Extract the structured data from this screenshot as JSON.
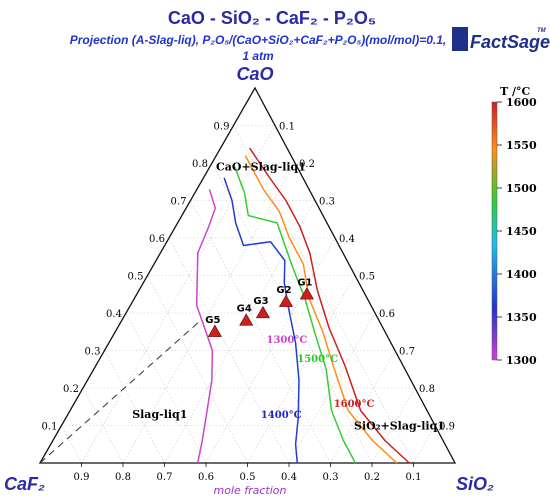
{
  "chart_data": {
    "type": "ternary",
    "title": "CaO - SiO₂ - CaF₂ - P₂O₅",
    "subtitle_line1": "Projection (A-Slag-liq), P₂O₅/(CaO+SiO₂+CaF₂+P₂O₅)(mol/mol)=0.1,",
    "subtitle_line2": "1 atm",
    "logo": "FactSage",
    "logo_tm": "TM",
    "vertices": {
      "top": "CaO",
      "left": "CaF₂",
      "right": "SiO₂"
    },
    "axis_label": "mole fraction",
    "ticks": [
      "0.1",
      "0.2",
      "0.3",
      "0.4",
      "0.5",
      "0.6",
      "0.7",
      "0.8",
      "0.9"
    ],
    "regions": [
      {
        "label": "CaO+Slag-liq1",
        "a": 0.78,
        "b": 0.02
      },
      {
        "label": "Slag-liq1",
        "a": 0.12,
        "b": 0.16
      },
      {
        "label": "SiO₂+Slag-liq1",
        "a": 0.09,
        "b": 0.71
      }
    ],
    "isotherm_labels": [
      {
        "label": "1300°C",
        "a": 0.32,
        "b": 0.38,
        "color": "#cc44cc"
      },
      {
        "label": "1500°C",
        "a": 0.27,
        "b": 0.48,
        "color": "#22cc22"
      },
      {
        "label": "1400°C",
        "a": 0.12,
        "b": 0.47,
        "color": "#2222cc"
      },
      {
        "label": "1600°C",
        "a": 0.15,
        "b": 0.63,
        "color": "#cc2222"
      }
    ],
    "series": [
      {
        "name": "1600",
        "color": "#cc1f1f",
        "points": [
          [
            0.84,
            0.07
          ],
          [
            0.76,
            0.16
          ],
          [
            0.7,
            0.23
          ],
          [
            0.63,
            0.3
          ],
          [
            0.56,
            0.36
          ],
          [
            0.46,
            0.43
          ],
          [
            0.36,
            0.51
          ],
          [
            0.26,
            0.6
          ],
          [
            0.14,
            0.7
          ],
          [
            0.06,
            0.8
          ],
          [
            0.0,
            0.89
          ]
        ]
      },
      {
        "name": "1550",
        "color": "#ff8c1a",
        "points": [
          [
            0.82,
            0.07
          ],
          [
            0.73,
            0.16
          ],
          [
            0.67,
            0.23
          ],
          [
            0.6,
            0.29
          ],
          [
            0.53,
            0.36
          ],
          [
            0.44,
            0.42
          ],
          [
            0.35,
            0.5
          ],
          [
            0.25,
            0.58
          ],
          [
            0.14,
            0.67
          ],
          [
            0.06,
            0.77
          ],
          [
            0.0,
            0.86
          ]
        ]
      },
      {
        "name": "1500",
        "color": "#33cc33",
        "points": [
          [
            0.79,
            0.06
          ],
          [
            0.72,
            0.12
          ],
          [
            0.66,
            0.16
          ],
          [
            0.64,
            0.24
          ],
          [
            0.58,
            0.29
          ],
          [
            0.52,
            0.34
          ],
          [
            0.44,
            0.41
          ],
          [
            0.35,
            0.48
          ],
          [
            0.25,
            0.56
          ],
          [
            0.14,
            0.63
          ],
          [
            0.06,
            0.7
          ],
          [
            0.0,
            0.76
          ]
        ]
      },
      {
        "name": "1400",
        "color": "#1f3fcc",
        "points": [
          [
            0.76,
            0.05
          ],
          [
            0.7,
            0.1
          ],
          [
            0.64,
            0.14
          ],
          [
            0.58,
            0.19
          ],
          [
            0.59,
            0.25
          ],
          [
            0.54,
            0.31
          ],
          [
            0.48,
            0.34
          ],
          [
            0.42,
            0.38
          ],
          [
            0.32,
            0.45
          ],
          [
            0.22,
            0.51
          ],
          [
            0.12,
            0.56
          ],
          [
            0.05,
            0.59
          ],
          [
            0.0,
            0.62
          ]
        ]
      },
      {
        "name": "1300",
        "color": "#cc44cc",
        "points": [
          [
            0.73,
            0.03
          ],
          [
            0.68,
            0.07
          ],
          [
            0.63,
            0.08
          ],
          [
            0.56,
            0.09
          ],
          [
            0.5,
            0.12
          ],
          [
            0.42,
            0.16
          ],
          [
            0.36,
            0.21
          ],
          [
            0.3,
            0.26
          ],
          [
            0.22,
            0.3
          ],
          [
            0.14,
            0.33
          ],
          [
            0.06,
            0.36
          ],
          [
            0.0,
            0.38
          ]
        ]
      }
    ],
    "tie_line": {
      "from": [
        0.0,
        0.0
      ],
      "to": [
        0.38,
        0.19
      ],
      "style": "dashed"
    },
    "points": [
      {
        "label": "G1",
        "a": 0.45,
        "b": 0.41
      },
      {
        "label": "G2",
        "a": 0.43,
        "b": 0.37
      },
      {
        "label": "G3",
        "a": 0.4,
        "b": 0.33
      },
      {
        "label": "G4",
        "a": 0.38,
        "b": 0.3
      },
      {
        "label": "G5",
        "a": 0.35,
        "b": 0.24
      }
    ],
    "colorbar": {
      "title": "T /°C",
      "ticks": [
        "1600",
        "1550",
        "1500",
        "1450",
        "1400",
        "1350",
        "1300"
      ],
      "min": 1300,
      "max": 1600,
      "stops": [
        "#cc44cc",
        "#2233cc",
        "#22bbee",
        "#33cc33",
        "#ff8c1a",
        "#cc1f1f"
      ]
    }
  }
}
